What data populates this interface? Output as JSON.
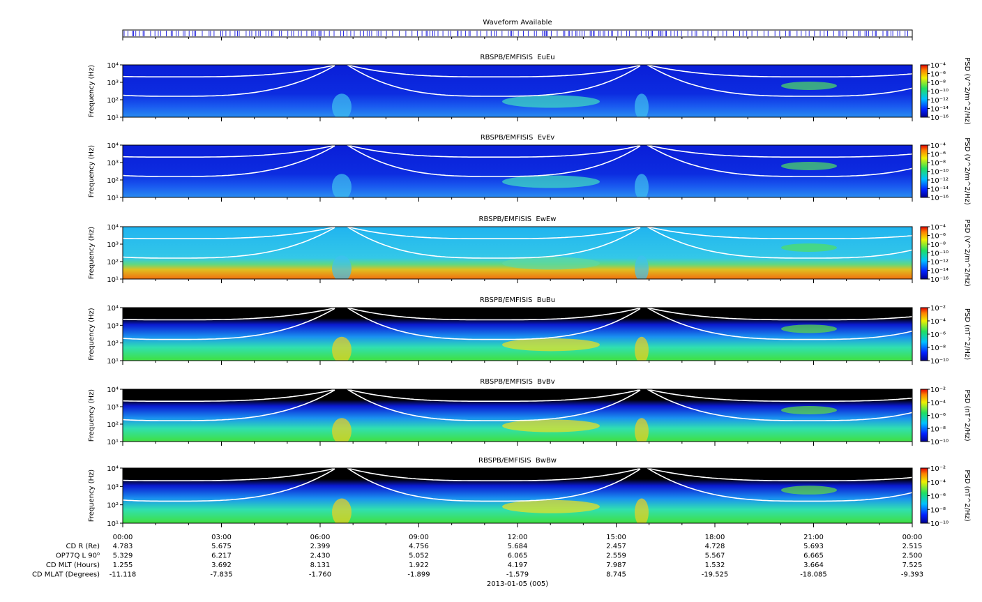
{
  "waveform": {
    "title": "Waveform Available"
  },
  "chart_data": [
    {
      "type": "spectrogram",
      "title": "RBSPB/EMFISIS  EuEu",
      "ylabel": "Frequency (Hz)",
      "ylog": true,
      "ylim": [
        10,
        10000
      ],
      "yticks": [
        {
          "value": 10,
          "label": "10¹"
        },
        {
          "value": 100,
          "label": "10²"
        },
        {
          "value": 1000,
          "label": "10³"
        },
        {
          "value": 10000,
          "label": "10⁴"
        }
      ],
      "colorbar": {
        "label": "PSD (V^2/m^2/Hz)",
        "log": true,
        "clim": [
          1e-16,
          0.0001
        ],
        "ticks": [
          {
            "value": 0.0001,
            "label": "10⁻⁴"
          },
          {
            "value": 1e-06,
            "label": "10⁻⁶"
          },
          {
            "value": 1e-08,
            "label": "10⁻⁸"
          },
          {
            "value": 1e-10,
            "label": "10⁻¹⁰"
          },
          {
            "value": 1e-12,
            "label": "10⁻¹²"
          },
          {
            "value": 1e-14,
            "label": "10⁻¹⁴"
          },
          {
            "value": 1e-16,
            "label": "10⁻¹⁶"
          }
        ]
      }
    },
    {
      "type": "spectrogram",
      "title": "RBSPB/EMFISIS  EvEv",
      "ylabel": "Frequency (Hz)",
      "ylog": true,
      "ylim": [
        10,
        10000
      ],
      "yticks": [
        {
          "value": 10,
          "label": "10¹"
        },
        {
          "value": 100,
          "label": "10²"
        },
        {
          "value": 1000,
          "label": "10³"
        },
        {
          "value": 10000,
          "label": "10⁴"
        }
      ],
      "colorbar": {
        "label": "PSD (V^2/m^2/Hz)",
        "log": true,
        "clim": [
          1e-16,
          0.0001
        ],
        "ticks": [
          {
            "value": 0.0001,
            "label": "10⁻⁴"
          },
          {
            "value": 1e-06,
            "label": "10⁻⁶"
          },
          {
            "value": 1e-08,
            "label": "10⁻⁸"
          },
          {
            "value": 1e-10,
            "label": "10⁻¹⁰"
          },
          {
            "value": 1e-12,
            "label": "10⁻¹²"
          },
          {
            "value": 1e-14,
            "label": "10⁻¹⁴"
          },
          {
            "value": 1e-16,
            "label": "10⁻¹⁶"
          }
        ]
      }
    },
    {
      "type": "spectrogram",
      "title": "RBSPB/EMFISIS  EwEw",
      "ylabel": "Frequency (Hz)",
      "ylog": true,
      "ylim": [
        10,
        10000
      ],
      "yticks": [
        {
          "value": 10,
          "label": "10¹"
        },
        {
          "value": 100,
          "label": "10²"
        },
        {
          "value": 1000,
          "label": "10³"
        },
        {
          "value": 10000,
          "label": "10⁴"
        }
      ],
      "colorbar": {
        "label": "PSD (V^2/m^2/Hz)",
        "log": true,
        "clim": [
          1e-16,
          0.0001
        ],
        "ticks": [
          {
            "value": 0.0001,
            "label": "10⁻⁴"
          },
          {
            "value": 1e-06,
            "label": "10⁻⁶"
          },
          {
            "value": 1e-08,
            "label": "10⁻⁸"
          },
          {
            "value": 1e-10,
            "label": "10⁻¹⁰"
          },
          {
            "value": 1e-12,
            "label": "10⁻¹²"
          },
          {
            "value": 1e-14,
            "label": "10⁻¹⁴"
          },
          {
            "value": 1e-16,
            "label": "10⁻¹⁶"
          }
        ]
      }
    },
    {
      "type": "spectrogram",
      "title": "RBSPB/EMFISIS  BuBu",
      "ylabel": "Frequency (Hz)",
      "ylog": true,
      "ylim": [
        10,
        10000
      ],
      "yticks": [
        {
          "value": 10,
          "label": "10¹"
        },
        {
          "value": 100,
          "label": "10²"
        },
        {
          "value": 1000,
          "label": "10³"
        },
        {
          "value": 10000,
          "label": "10⁴"
        }
      ],
      "colorbar": {
        "label": "PSD (nT^2/Hz)",
        "log": true,
        "clim": [
          1e-10,
          0.01
        ],
        "ticks": [
          {
            "value": 0.01,
            "label": "10⁻²"
          },
          {
            "value": 0.0001,
            "label": "10⁻⁴"
          },
          {
            "value": 1e-06,
            "label": "10⁻⁶"
          },
          {
            "value": 1e-08,
            "label": "10⁻⁸"
          },
          {
            "value": 1e-10,
            "label": "10⁻¹⁰"
          }
        ]
      }
    },
    {
      "type": "spectrogram",
      "title": "RBSPB/EMFISIS  BvBv",
      "ylabel": "Frequency (Hz)",
      "ylog": true,
      "ylim": [
        10,
        10000
      ],
      "yticks": [
        {
          "value": 10,
          "label": "10¹"
        },
        {
          "value": 100,
          "label": "10²"
        },
        {
          "value": 1000,
          "label": "10³"
        },
        {
          "value": 10000,
          "label": "10⁴"
        }
      ],
      "colorbar": {
        "label": "PSD (nT^2/Hz)",
        "log": true,
        "clim": [
          1e-10,
          0.01
        ],
        "ticks": [
          {
            "value": 0.01,
            "label": "10⁻²"
          },
          {
            "value": 0.0001,
            "label": "10⁻⁴"
          },
          {
            "value": 1e-06,
            "label": "10⁻⁶"
          },
          {
            "value": 1e-08,
            "label": "10⁻⁸"
          },
          {
            "value": 1e-10,
            "label": "10⁻¹⁰"
          }
        ]
      }
    },
    {
      "type": "spectrogram",
      "title": "RBSPB/EMFISIS  BwBw",
      "ylabel": "Frequency (Hz)",
      "ylog": true,
      "ylim": [
        10,
        10000
      ],
      "yticks": [
        {
          "value": 10,
          "label": "10¹"
        },
        {
          "value": 100,
          "label": "10²"
        },
        {
          "value": 1000,
          "label": "10³"
        },
        {
          "value": 10000,
          "label": "10⁴"
        }
      ],
      "colorbar": {
        "label": "PSD (nT^2/Hz)",
        "log": true,
        "clim": [
          1e-10,
          0.01
        ],
        "ticks": [
          {
            "value": 0.01,
            "label": "10⁻²"
          },
          {
            "value": 0.0001,
            "label": "10⁻⁴"
          },
          {
            "value": 1e-06,
            "label": "10⁻⁶"
          },
          {
            "value": 1e-08,
            "label": "10⁻⁸"
          },
          {
            "value": 1e-10,
            "label": "10⁻¹⁰"
          }
        ]
      }
    }
  ],
  "time_axis": {
    "ticks": [
      "00:00",
      "03:00",
      "06:00",
      "09:00",
      "12:00",
      "15:00",
      "18:00",
      "21:00",
      "00:00"
    ],
    "date": "2013-01-05 (005)"
  },
  "ephemeris": {
    "labels": [
      "CD R (Re)",
      "OP77Q L 90⁰",
      "CD MLT (Hours)",
      "CD MLAT (Degrees)"
    ],
    "rows": [
      [
        "4.783",
        "5.675",
        "2.399",
        "4.756",
        "5.684",
        "2.457",
        "4.728",
        "5.693",
        "2.515"
      ],
      [
        "5.329",
        "6.217",
        "2.430",
        "5.052",
        "6.065",
        "2.559",
        "5.567",
        "6.665",
        "2.500"
      ],
      [
        "1.255",
        "3.692",
        "8.131",
        "1.922",
        "4.197",
        "7.987",
        "1.532",
        "3.664",
        "7.525"
      ],
      [
        "-11.118",
        "-7.835",
        "-1.760",
        "-1.899",
        "-1.579",
        "8.745",
        "-19.525",
        "-18.085",
        "-9.393"
      ]
    ]
  }
}
